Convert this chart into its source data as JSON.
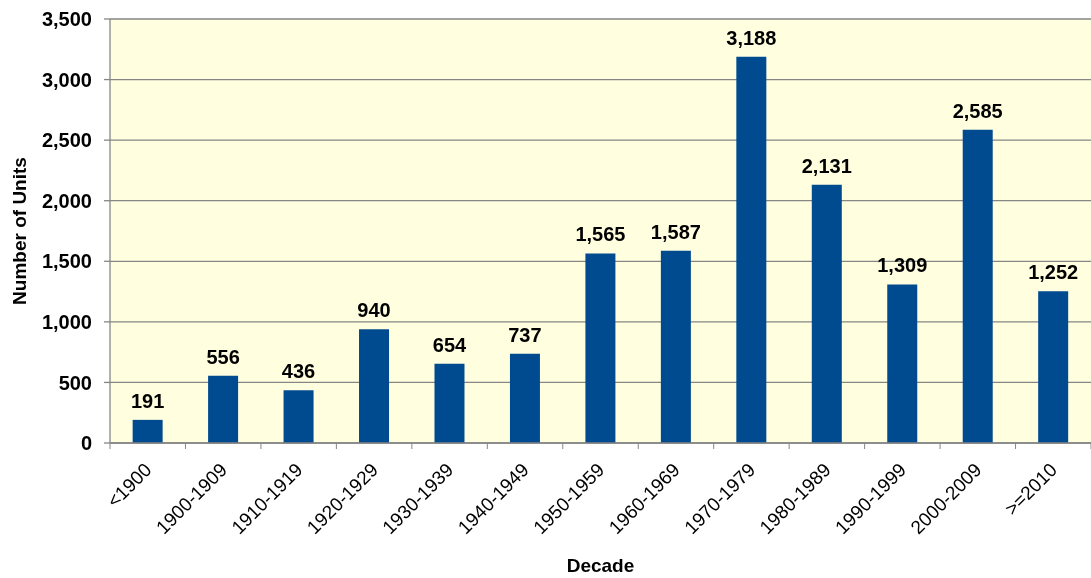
{
  "chart_data": {
    "type": "bar",
    "xlabel": "Decade",
    "ylabel": "Number of Units",
    "categories": [
      "<1900",
      "1900-1909",
      "1910-1919",
      "1920-1929",
      "1930-1939",
      "1940-1949",
      "1950-1959",
      "1960-1969",
      "1970-1979",
      "1980-1989",
      "1990-1999",
      "2000-2009",
      ">=2010"
    ],
    "values": [
      191,
      556,
      436,
      940,
      654,
      737,
      1565,
      1587,
      3188,
      2131,
      1309,
      2585,
      1252
    ],
    "value_labels": [
      "191",
      "556",
      "436",
      "940",
      "654",
      "737",
      "1,565",
      "1,587",
      "3,188",
      "2,131",
      "1,309",
      "2,585",
      "1,252"
    ],
    "color": "#004a8f",
    "ylim": [
      0,
      3500
    ],
    "yticks": [
      0,
      500,
      {
        "value": 1000,
        "label": "1,000"
      },
      {
        "value": 1500,
        "label": "1,500"
      },
      {
        "value": 2000,
        "label": "2,000"
      },
      {
        "value": 2500,
        "label": "2,500"
      },
      {
        "value": 3000,
        "label": "3,000"
      },
      {
        "value": 3500,
        "label": "3,500"
      }
    ],
    "grid": "y"
  }
}
